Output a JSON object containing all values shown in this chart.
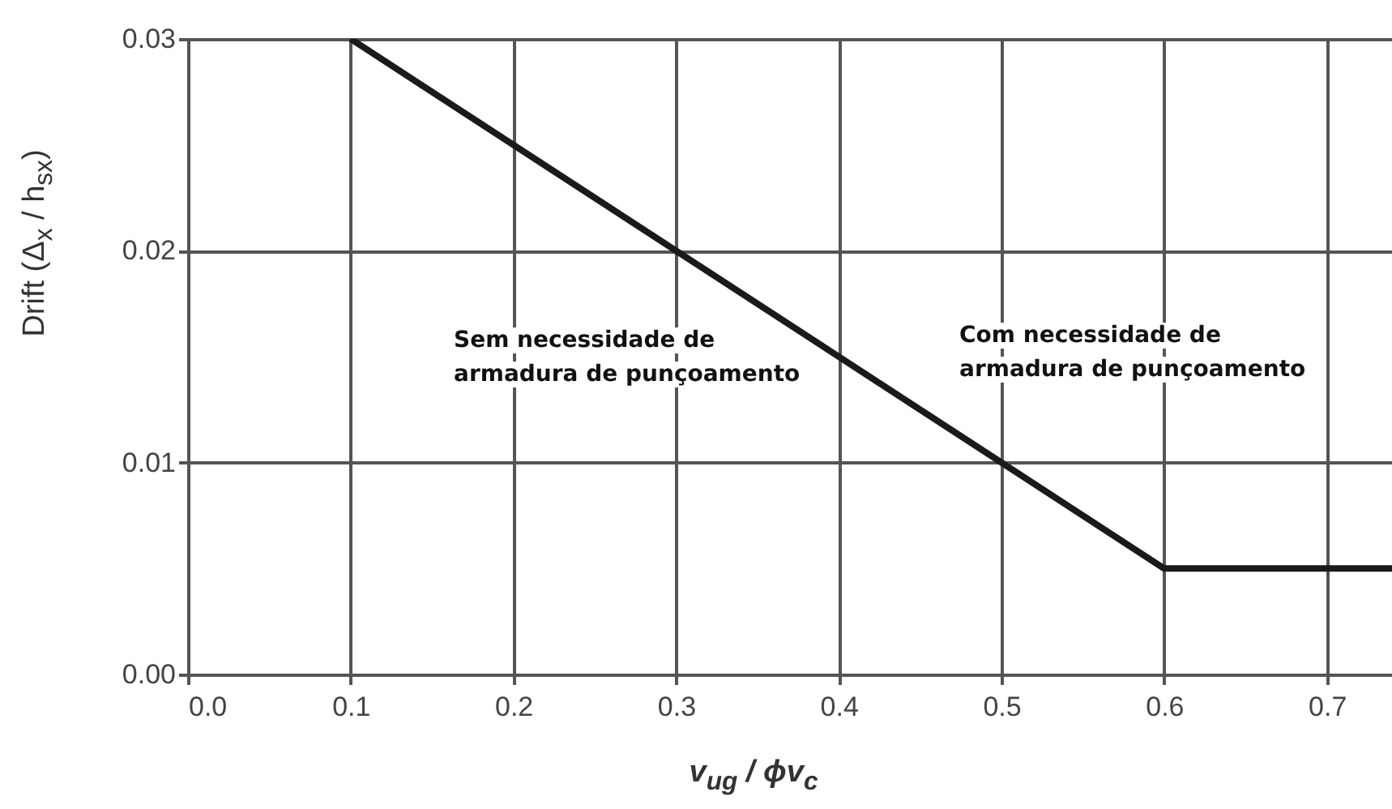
{
  "chart_data": {
    "type": "line",
    "xlabel": "v$_{ug}$ / ϕv$_{c}$",
    "ylabel": "Drift (Δ$_{x}$ / h$_{sx}$)",
    "x": [
      0.1,
      0.6,
      0.74
    ],
    "series": [
      {
        "color": "#1a1a1a",
        "values": [
          0.03,
          0.005,
          0.005
        ]
      }
    ],
    "xlim": [
      0,
      0.74
    ],
    "xticks": [
      {
        "value": 0,
        "label": "0.0"
      },
      {
        "value": 0.1,
        "label": "0.1"
      },
      {
        "value": 0.2,
        "label": "0.2"
      },
      {
        "value": 0.3,
        "label": "0.3"
      },
      {
        "value": 0.4,
        "label": "0.4"
      },
      {
        "value": 0.5,
        "label": "0.5"
      },
      {
        "value": 0.6,
        "label": "0.6"
      },
      {
        "value": 0.7,
        "label": "0.7"
      }
    ],
    "ylim": [
      0,
      0.03
    ],
    "yticks": [
      {
        "value": 0,
        "label": "0.00"
      },
      {
        "value": 0.01,
        "label": "0.01"
      },
      {
        "value": 0.02,
        "label": "0.02"
      },
      {
        "value": 0.03,
        "label": "0.03"
      }
    ],
    "grid": true,
    "annotations": [
      "Sem necessidade de armadura de punçoamento",
      "Com necessidade de armadura de punçoamento"
    ]
  }
}
